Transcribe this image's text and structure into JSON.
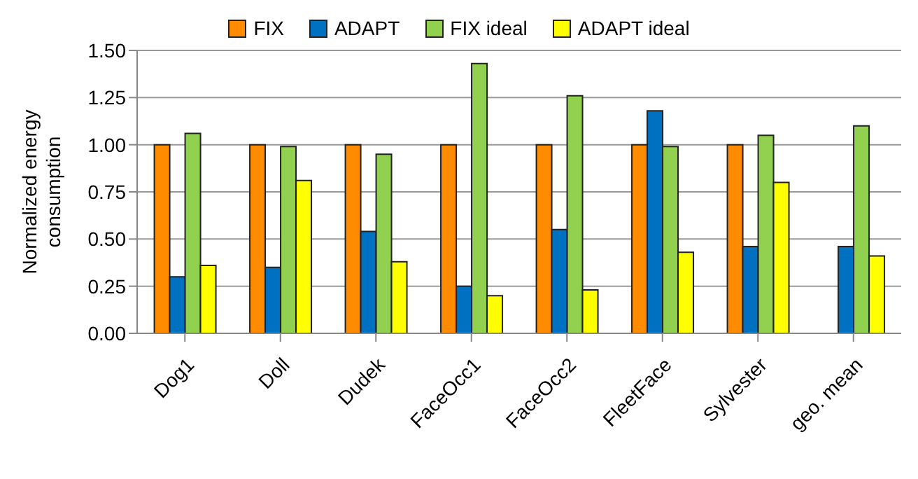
{
  "chart_data": {
    "type": "bar",
    "ylabel": "Normalized energy consumption",
    "categories": [
      "Dog1",
      "Doll",
      "Dudek",
      "FaceOcc1",
      "FaceOcc2",
      "FleetFace",
      "Sylvester",
      "geo. mean"
    ],
    "series": [
      {
        "name": "FIX",
        "color": "#ff8c00",
        "values": [
          1.0,
          1.0,
          1.0,
          1.0,
          1.0,
          1.0,
          1.0,
          null
        ]
      },
      {
        "name": "ADAPT",
        "color": "#0070c0",
        "values": [
          0.3,
          0.35,
          0.54,
          0.25,
          0.55,
          1.18,
          0.46,
          0.46
        ]
      },
      {
        "name": "FIX ideal",
        "color": "#92d050",
        "values": [
          1.06,
          0.99,
          0.95,
          1.43,
          1.26,
          0.99,
          1.05,
          1.1
        ]
      },
      {
        "name": "ADAPT ideal",
        "color": "#ffff00",
        "values": [
          0.36,
          0.81,
          0.38,
          0.2,
          0.23,
          0.43,
          0.8,
          0.41
        ]
      }
    ],
    "ylim": [
      0,
      1.5
    ],
    "yticks": [
      {
        "value": 0,
        "label": "0.00"
      },
      {
        "value": 0.25,
        "label": "0.25"
      },
      {
        "value": 0.5,
        "label": "0.50"
      },
      {
        "value": 0.75,
        "label": "0.75"
      },
      {
        "value": 1,
        "label": "1.00"
      },
      {
        "value": 1.25,
        "label": "1.25"
      },
      {
        "value": 1.5,
        "label": "1.50"
      }
    ],
    "grid": "y",
    "legend": "top"
  }
}
